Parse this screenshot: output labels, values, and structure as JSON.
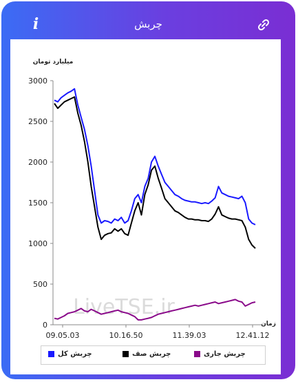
{
  "header": {
    "title": "چربش",
    "info_icon": "info-icon",
    "link_icon": "link-icon"
  },
  "colors": {
    "total": "#1a1aff",
    "queue": "#000000",
    "current": "#8a0a8a",
    "accent": "#6a3fe0"
  },
  "watermark": "LiveTSE.ir",
  "chart_data": {
    "type": "line",
    "ylabel": "میلیارد تومان",
    "xlabel": "زمان",
    "ylim": [
      0,
      3000
    ],
    "yticks": [
      "0",
      "500",
      "1000",
      "1500",
      "2000",
      "2500",
      "3000"
    ],
    "xticks": [
      "09.05.03",
      "10.16.50",
      "11.39.03",
      "12.41.12"
    ],
    "series": [
      {
        "name": "چربش کل",
        "color": "#1a1aff",
        "values": [
          2760,
          2740,
          2790,
          2820,
          2850,
          2870,
          2900,
          2700,
          2550,
          2400,
          2200,
          1950,
          1650,
          1350,
          1250,
          1280,
          1270,
          1250,
          1300,
          1280,
          1320,
          1250,
          1280,
          1400,
          1550,
          1600,
          1500,
          1700,
          1800,
          2000,
          2070,
          1950,
          1850,
          1750,
          1700,
          1650,
          1600,
          1580,
          1550,
          1530,
          1520,
          1510,
          1510,
          1500,
          1490,
          1500,
          1490,
          1520,
          1560,
          1700,
          1620,
          1600,
          1580,
          1570,
          1560,
          1550,
          1580,
          1500,
          1300,
          1250,
          1230
        ]
      },
      {
        "name": "چربش صف",
        "color": "#000000",
        "values": [
          2720,
          2660,
          2700,
          2740,
          2760,
          2780,
          2800,
          2600,
          2450,
          2250,
          2000,
          1700,
          1450,
          1200,
          1050,
          1100,
          1120,
          1130,
          1180,
          1150,
          1180,
          1120,
          1100,
          1250,
          1400,
          1500,
          1350,
          1600,
          1720,
          1900,
          1950,
          1800,
          1680,
          1550,
          1500,
          1450,
          1400,
          1380,
          1350,
          1320,
          1300,
          1300,
          1290,
          1290,
          1280,
          1280,
          1270,
          1300,
          1360,
          1450,
          1350,
          1330,
          1310,
          1300,
          1300,
          1290,
          1280,
          1200,
          1050,
          980,
          940
        ]
      },
      {
        "name": "چربش جاری",
        "color": "#8a0a8a",
        "values": [
          80,
          70,
          90,
          110,
          140,
          150,
          160,
          180,
          200,
          170,
          160,
          190,
          170,
          150,
          130,
          140,
          150,
          160,
          170,
          180,
          160,
          150,
          140,
          120,
          100,
          60,
          60,
          70,
          80,
          90,
          110,
          130,
          140,
          150,
          160,
          170,
          180,
          190,
          200,
          210,
          220,
          230,
          240,
          230,
          240,
          250,
          260,
          270,
          280,
          260,
          270,
          280,
          290,
          300,
          310,
          290,
          280,
          230,
          250,
          270,
          280
        ]
      }
    ],
    "legend": "bottom"
  }
}
